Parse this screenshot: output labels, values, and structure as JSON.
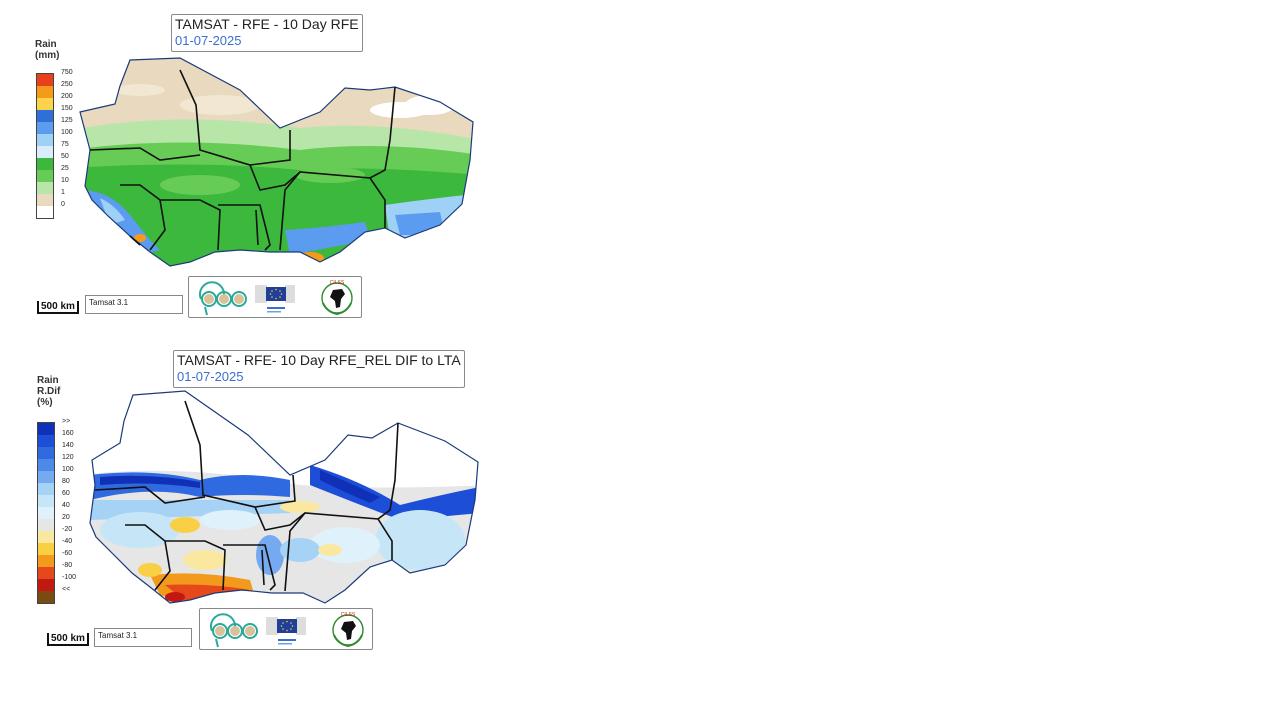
{
  "map1": {
    "title": "TAMSAT - RFE - 10 Day RFE",
    "date": "01-07-2025",
    "legend_title": [
      "Rain",
      "(mm)"
    ],
    "legend": [
      {
        "label": "750",
        "color": "#e8401c"
      },
      {
        "label": "250",
        "color": "#f59a1a"
      },
      {
        "label": "200",
        "color": "#fcd34a"
      },
      {
        "label": "150",
        "color": "#2f6fd8"
      },
      {
        "label": "125",
        "color": "#5b9cf0"
      },
      {
        "label": "100",
        "color": "#9fd0f5"
      },
      {
        "label": "75",
        "color": "#d9eefa"
      },
      {
        "label": "50",
        "color": "#3cb83c"
      },
      {
        "label": "25",
        "color": "#66cc55"
      },
      {
        "label": "10",
        "color": "#b8e6a8"
      },
      {
        "label": "1",
        "color": "#e8d9bf"
      },
      {
        "label": "0",
        "color": "#ffffff"
      }
    ],
    "scale_label": "500 km",
    "source_label": "Tamsat 3.1"
  },
  "map2": {
    "title": "TAMSAT - RFE- 10 Day RFE_REL DIF to LTA",
    "date": "01-07-2025",
    "legend_title": [
      "Rain",
      "R.Dif",
      "(%)"
    ],
    "legend": [
      {
        "label": ">>",
        "color": "#1030b8"
      },
      {
        "label": "160",
        "color": "#1c4ed8"
      },
      {
        "label": "140",
        "color": "#2f6ae0"
      },
      {
        "label": "120",
        "color": "#4d8ae8"
      },
      {
        "label": "100",
        "color": "#75aaf0"
      },
      {
        "label": "80",
        "color": "#a6d2f5"
      },
      {
        "label": "60",
        "color": "#c6e6f8"
      },
      {
        "label": "40",
        "color": "#dff2fb"
      },
      {
        "label": "20",
        "color": "#e6e6e6"
      },
      {
        "label": "-20",
        "color": "#fbe8a0"
      },
      {
        "label": "-40",
        "color": "#f9cf46"
      },
      {
        "label": "-60",
        "color": "#f39a1c"
      },
      {
        "label": "-80",
        "color": "#e5481a"
      },
      {
        "label": "-100",
        "color": "#c21810"
      },
      {
        "label": "<<",
        "color": "#7a4a10"
      }
    ],
    "scale_label": "500 km",
    "source_label": "Tamsat 3.1"
  },
  "logos": {
    "logo1_text": "aco",
    "logo2_text": "European Commission",
    "logo3_text": "CILSS"
  }
}
